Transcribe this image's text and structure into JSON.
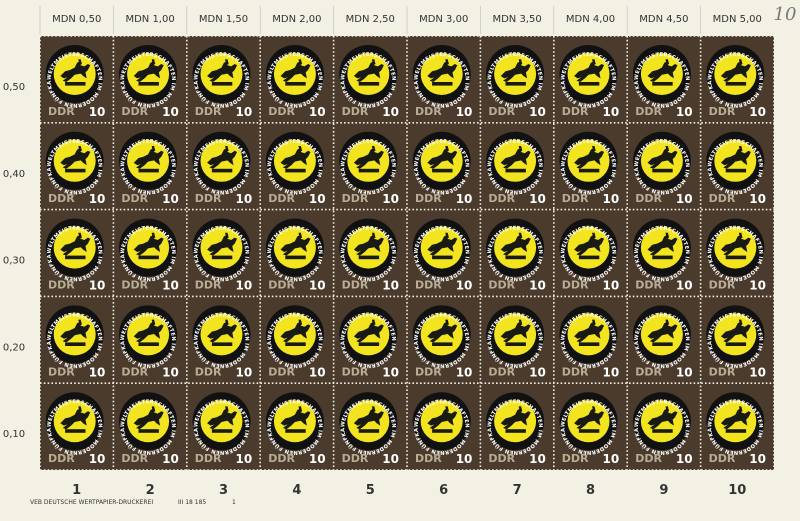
{
  "sheet": {
    "top_labels": [
      "MDN 0,50",
      "MDN 1,00",
      "MDN 1,50",
      "MDN 2,00",
      "MDN 2,50",
      "MDN 3,00",
      "MDN 3,50",
      "MDN 4,00",
      "MDN 4,50",
      "MDN 5,00"
    ],
    "corner_note": "10",
    "left_labels": [
      "0,50",
      "0,40",
      "0,30",
      "0,20",
      "0,10"
    ],
    "column_numbers": [
      "1",
      "2",
      "3",
      "4",
      "5",
      "6",
      "7",
      "8",
      "9",
      "10"
    ],
    "imprint": {
      "printer": "VEB DEUTSCHE WERTPAPIER-DRUCKEREI",
      "code": "III 18 185",
      "number": "1"
    },
    "stamp": {
      "country": "DDR",
      "value": "10",
      "ring_text": "WELTMEISTERSCHAFTEN IM MODERNEN FÜNFKAMPF · LEIPZIG 1965"
    }
  }
}
